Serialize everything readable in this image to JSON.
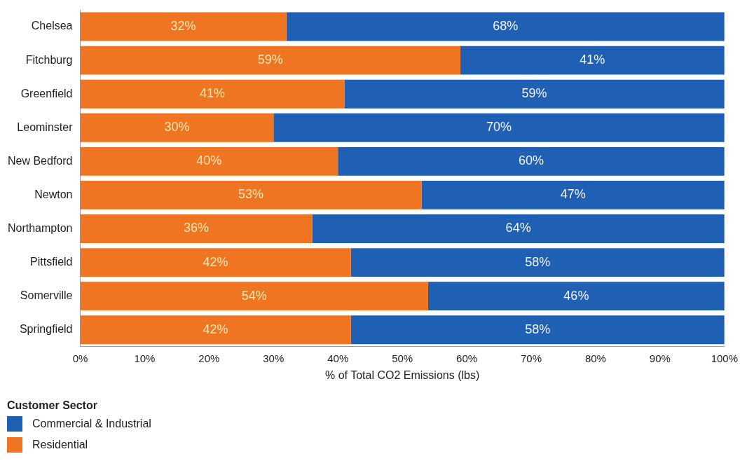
{
  "chart_data": {
    "type": "bar",
    "orientation": "horizontal",
    "stacked": true,
    "categories": [
      "Chelsea",
      "Fitchburg",
      "Greenfield",
      "Leominster",
      "New Bedford",
      "Newton",
      "Northampton",
      "Pittsfield",
      "Somerville",
      "Springfield"
    ],
    "series": [
      {
        "name": "Residential",
        "color": "#f07522",
        "values": [
          32,
          59,
          41,
          30,
          40,
          53,
          36,
          42,
          54,
          42
        ],
        "value_labels": [
          "32%",
          "59%",
          "41%",
          "30%",
          "40%",
          "53%",
          "36%",
          "42%",
          "54%",
          "42%"
        ]
      },
      {
        "name": "Commercial & Industrial",
        "color": "#1f5fb4",
        "values": [
          68,
          41,
          59,
          70,
          60,
          47,
          64,
          58,
          46,
          58
        ],
        "value_labels": [
          "68%",
          "41%",
          "59%",
          "70%",
          "60%",
          "47%",
          "64%",
          "58%",
          "46%",
          "58%"
        ]
      }
    ],
    "xlabel": "% of Total CO2 Emissions (lbs)",
    "xlim": [
      0,
      100
    ],
    "xticks": [
      {
        "value": 0,
        "label": "0%"
      },
      {
        "value": 10,
        "label": "10%"
      },
      {
        "value": 20,
        "label": "20%"
      },
      {
        "value": 30,
        "label": "30%"
      },
      {
        "value": 40,
        "label": "40%"
      },
      {
        "value": 50,
        "label": "50%"
      },
      {
        "value": 60,
        "label": "60%"
      },
      {
        "value": 70,
        "label": "70%"
      },
      {
        "value": 80,
        "label": "80%"
      },
      {
        "value": 90,
        "label": "90%"
      },
      {
        "value": 100,
        "label": "100%"
      }
    ],
    "grid": false,
    "legend": "bottom left",
    "legend_title": "Customer Sector"
  }
}
